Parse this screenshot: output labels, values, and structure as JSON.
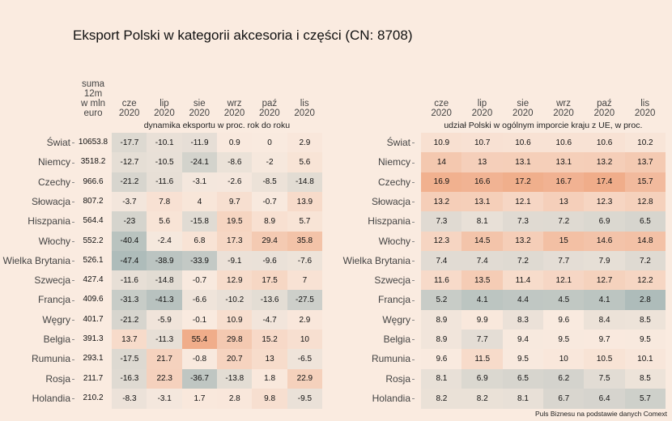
{
  "chart_data": [
    {
      "type": "heatmap",
      "title": "Eksport Polski w kategorii akcesoria i części (CN: 8708)",
      "subtitle": "dynamika eksportu w proc. rok do roku",
      "sum_header": [
        "suma",
        "12m",
        "w mln",
        "euro"
      ],
      "columns": [
        [
          "cze",
          "2020"
        ],
        [
          "lip",
          "2020"
        ],
        [
          "sie",
          "2020"
        ],
        [
          "wrz",
          "2020"
        ],
        [
          "paź",
          "2020"
        ],
        [
          "lis",
          "2020"
        ]
      ],
      "rows": [
        "Świat",
        "Niemcy",
        "Czechy",
        "Słowacja",
        "Hiszpania",
        "Włochy",
        "Wielka Brytania",
        "Szwecja",
        "Francja",
        "Węgry",
        "Belgia",
        "Rumunia",
        "Rosja",
        "Holandia"
      ],
      "sum_values": [
        "10653.8",
        "3518.2",
        "966.6",
        "807.2",
        "564.4",
        "552.2",
        "526.1",
        "427.4",
        "409.6",
        "401.7",
        "391.3",
        "293.1",
        "211.7",
        "210.2"
      ],
      "values": [
        [
          -17.7,
          -10.1,
          -11.9,
          0.9,
          0,
          2.9
        ],
        [
          -12.7,
          -10.5,
          -24.1,
          -8.6,
          -2,
          5.6
        ],
        [
          -21.2,
          -11.6,
          -3.1,
          -2.6,
          -8.5,
          -14.8
        ],
        [
          -3.7,
          7.8,
          4,
          9.7,
          -0.7,
          13.9
        ],
        [
          -23,
          5.6,
          -15.8,
          19.5,
          8.9,
          5.7
        ],
        [
          -40.4,
          -2.4,
          6.8,
          17.3,
          29.4,
          35.8
        ],
        [
          -47.4,
          -38.9,
          -33.9,
          -9.1,
          -9.6,
          -7.6
        ],
        [
          -11.6,
          -14.8,
          -0.7,
          12.9,
          17.5,
          7
        ],
        [
          -31.3,
          -41.3,
          -6.6,
          -10.2,
          -13.6,
          -27.5
        ],
        [
          -21.2,
          -5.9,
          -0.1,
          10.9,
          -4.7,
          2.9
        ],
        [
          13.7,
          -11.3,
          55.4,
          29.8,
          15.2,
          10
        ],
        [
          -17.5,
          21.7,
          -0.8,
          20.7,
          13,
          -6.5
        ],
        [
          -16.3,
          22.3,
          -36.7,
          -13.8,
          1.8,
          22.9
        ],
        [
          -8.3,
          -3.1,
          1.7,
          2.8,
          9.8,
          -9.5
        ]
      ],
      "scale": {
        "min": -47.4,
        "mid": 0,
        "max": 55.4
      }
    },
    {
      "type": "heatmap",
      "subtitle": "udział Polski w ogólnym imporcie kraju z UE, w proc.",
      "columns": [
        [
          "cze",
          "2020"
        ],
        [
          "lip",
          "2020"
        ],
        [
          "sie",
          "2020"
        ],
        [
          "wrz",
          "2020"
        ],
        [
          "paź",
          "2020"
        ],
        [
          "lis",
          "2020"
        ]
      ],
      "rows": [
        "Świat",
        "Niemcy",
        "Czechy",
        "Słowacja",
        "Hiszpania",
        "Włochy",
        "Wielka Brytania",
        "Szwecja",
        "Francja",
        "Węgry",
        "Belgia",
        "Rumunia",
        "Rosja",
        "Holandia"
      ],
      "values": [
        [
          10.9,
          10.7,
          10.6,
          10.6,
          10.6,
          10.2
        ],
        [
          14,
          13,
          13.1,
          13.1,
          13.2,
          13.7
        ],
        [
          16.9,
          16.6,
          17.2,
          16.7,
          17.4,
          15.7
        ],
        [
          13.2,
          13.1,
          12.1,
          13,
          12.3,
          12.8
        ],
        [
          7.3,
          8.1,
          7.3,
          7.2,
          6.9,
          6.5
        ],
        [
          12.3,
          14.5,
          13.2,
          15,
          14.6,
          14.8
        ],
        [
          7.4,
          7.4,
          7.2,
          7.7,
          7.9,
          7.2
        ],
        [
          11.6,
          13.5,
          11.4,
          12.1,
          12.7,
          12.2
        ],
        [
          5.2,
          4.1,
          4.4,
          4.5,
          4.1,
          2.8
        ],
        [
          8.9,
          9.9,
          8.3,
          9.6,
          8.4,
          8.5
        ],
        [
          8.9,
          7.7,
          9.4,
          9.5,
          9.7,
          9.5
        ],
        [
          9.6,
          11.5,
          9.5,
          10,
          10.5,
          10.1
        ],
        [
          8.1,
          6.9,
          6.5,
          6.2,
          7.5,
          8.5
        ],
        [
          8.2,
          8.2,
          8.1,
          6.7,
          6.4,
          5.7
        ]
      ],
      "scale": {
        "min": 2.8,
        "mid": 9.6,
        "max": 17.4
      }
    }
  ],
  "colors": {
    "low": "#aebcba",
    "mid": "#f9eadf",
    "high": "#f0ad8a",
    "background": "#faebe0"
  },
  "caption": "Puls Biznesu na podstawie danych Comext"
}
